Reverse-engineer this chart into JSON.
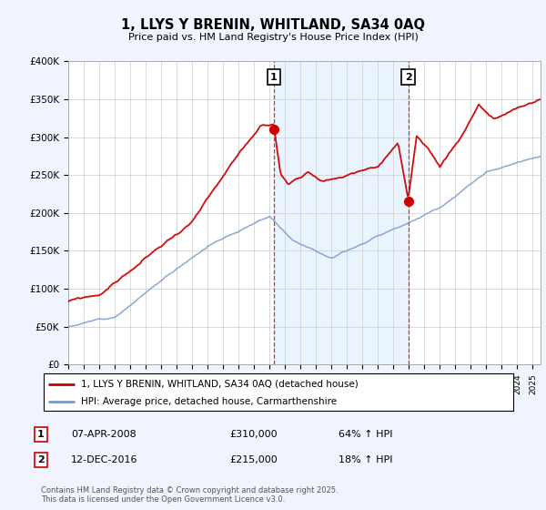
{
  "title": "1, LLYS Y BRENIN, WHITLAND, SA34 0AQ",
  "subtitle": "Price paid vs. HM Land Registry's House Price Index (HPI)",
  "ylabel_ticks": [
    "£0",
    "£50K",
    "£100K",
    "£150K",
    "£200K",
    "£250K",
    "£300K",
    "£350K",
    "£400K"
  ],
  "ylim": [
    0,
    400000
  ],
  "xlim_start": 1995.0,
  "xlim_end": 2025.5,
  "red_color": "#cc0000",
  "blue_color": "#7799cc",
  "shade_color": "#ddeeff",
  "vline1_x": 2008.27,
  "vline2_x": 2016.95,
  "sale1_y": 310000,
  "sale2_y": 215000,
  "annotation1": {
    "label": "1",
    "x": 2008.27
  },
  "annotation2": {
    "label": "2",
    "x": 2016.95
  },
  "legend_line1": "1, LLYS Y BRENIN, WHITLAND, SA34 0AQ (detached house)",
  "legend_line2": "HPI: Average price, detached house, Carmarthenshire",
  "table_rows": [
    {
      "num": "1",
      "date": "07-APR-2008",
      "price": "£310,000",
      "change": "64% ↑ HPI"
    },
    {
      "num": "2",
      "date": "12-DEC-2016",
      "price": "£215,000",
      "change": "18% ↑ HPI"
    }
  ],
  "footnote": "Contains HM Land Registry data © Crown copyright and database right 2025.\nThis data is licensed under the Open Government Licence v3.0.",
  "background_color": "#f0f4ff",
  "plot_bg_color": "#ffffff"
}
